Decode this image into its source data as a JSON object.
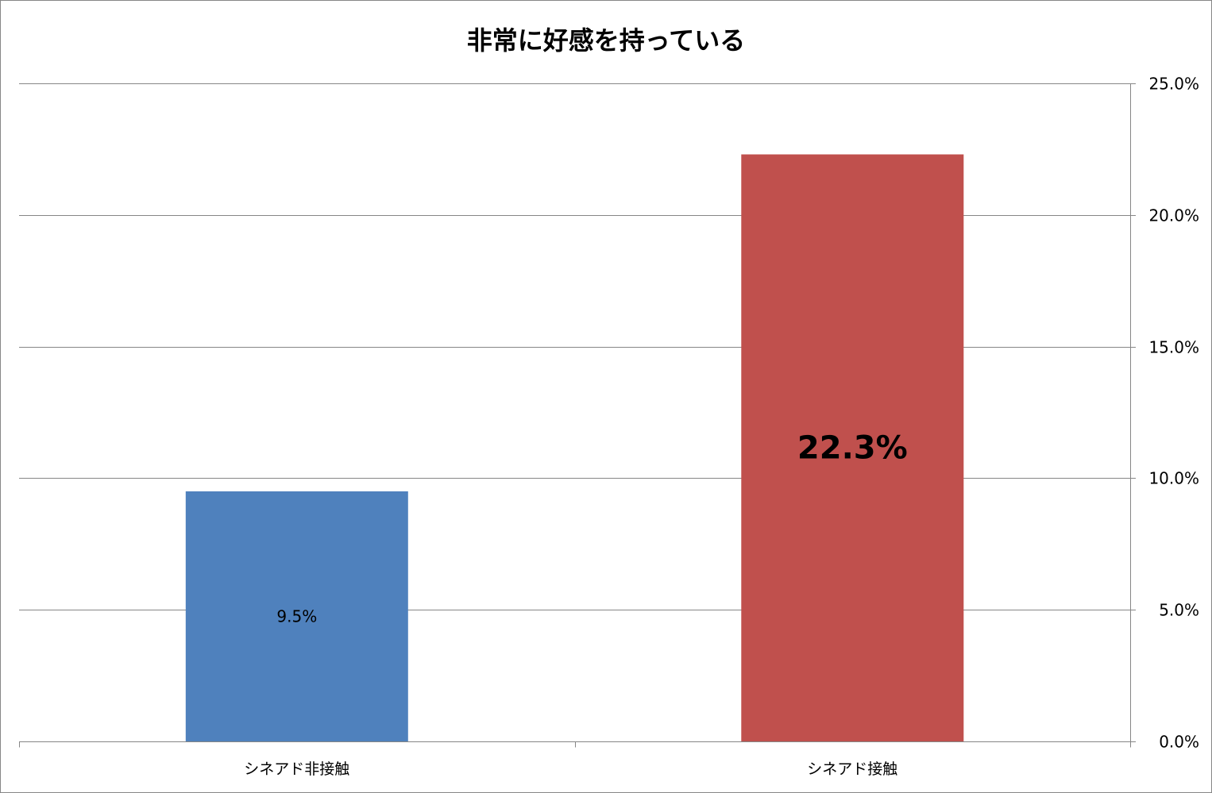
{
  "chart_data": {
    "type": "bar",
    "title": "非常に好感を持っている",
    "categories": [
      "シネアド非接触",
      "シネアド接触"
    ],
    "values": [
      9.5,
      22.3
    ],
    "data_labels": [
      "9.5%",
      "22.3%"
    ],
    "bar_colors": [
      "#4F81BD",
      "#C0504D"
    ],
    "y_axis_side": "right",
    "ylim": [
      0,
      25
    ],
    "yticks": [
      0,
      5,
      10,
      15,
      20,
      25
    ],
    "ytick_labels": [
      "0.0%",
      "5.0%",
      "10.0%",
      "15.0%",
      "20.0%",
      "25.0%"
    ],
    "xlabel": "",
    "ylabel": "",
    "grid": true,
    "legend": "none"
  }
}
